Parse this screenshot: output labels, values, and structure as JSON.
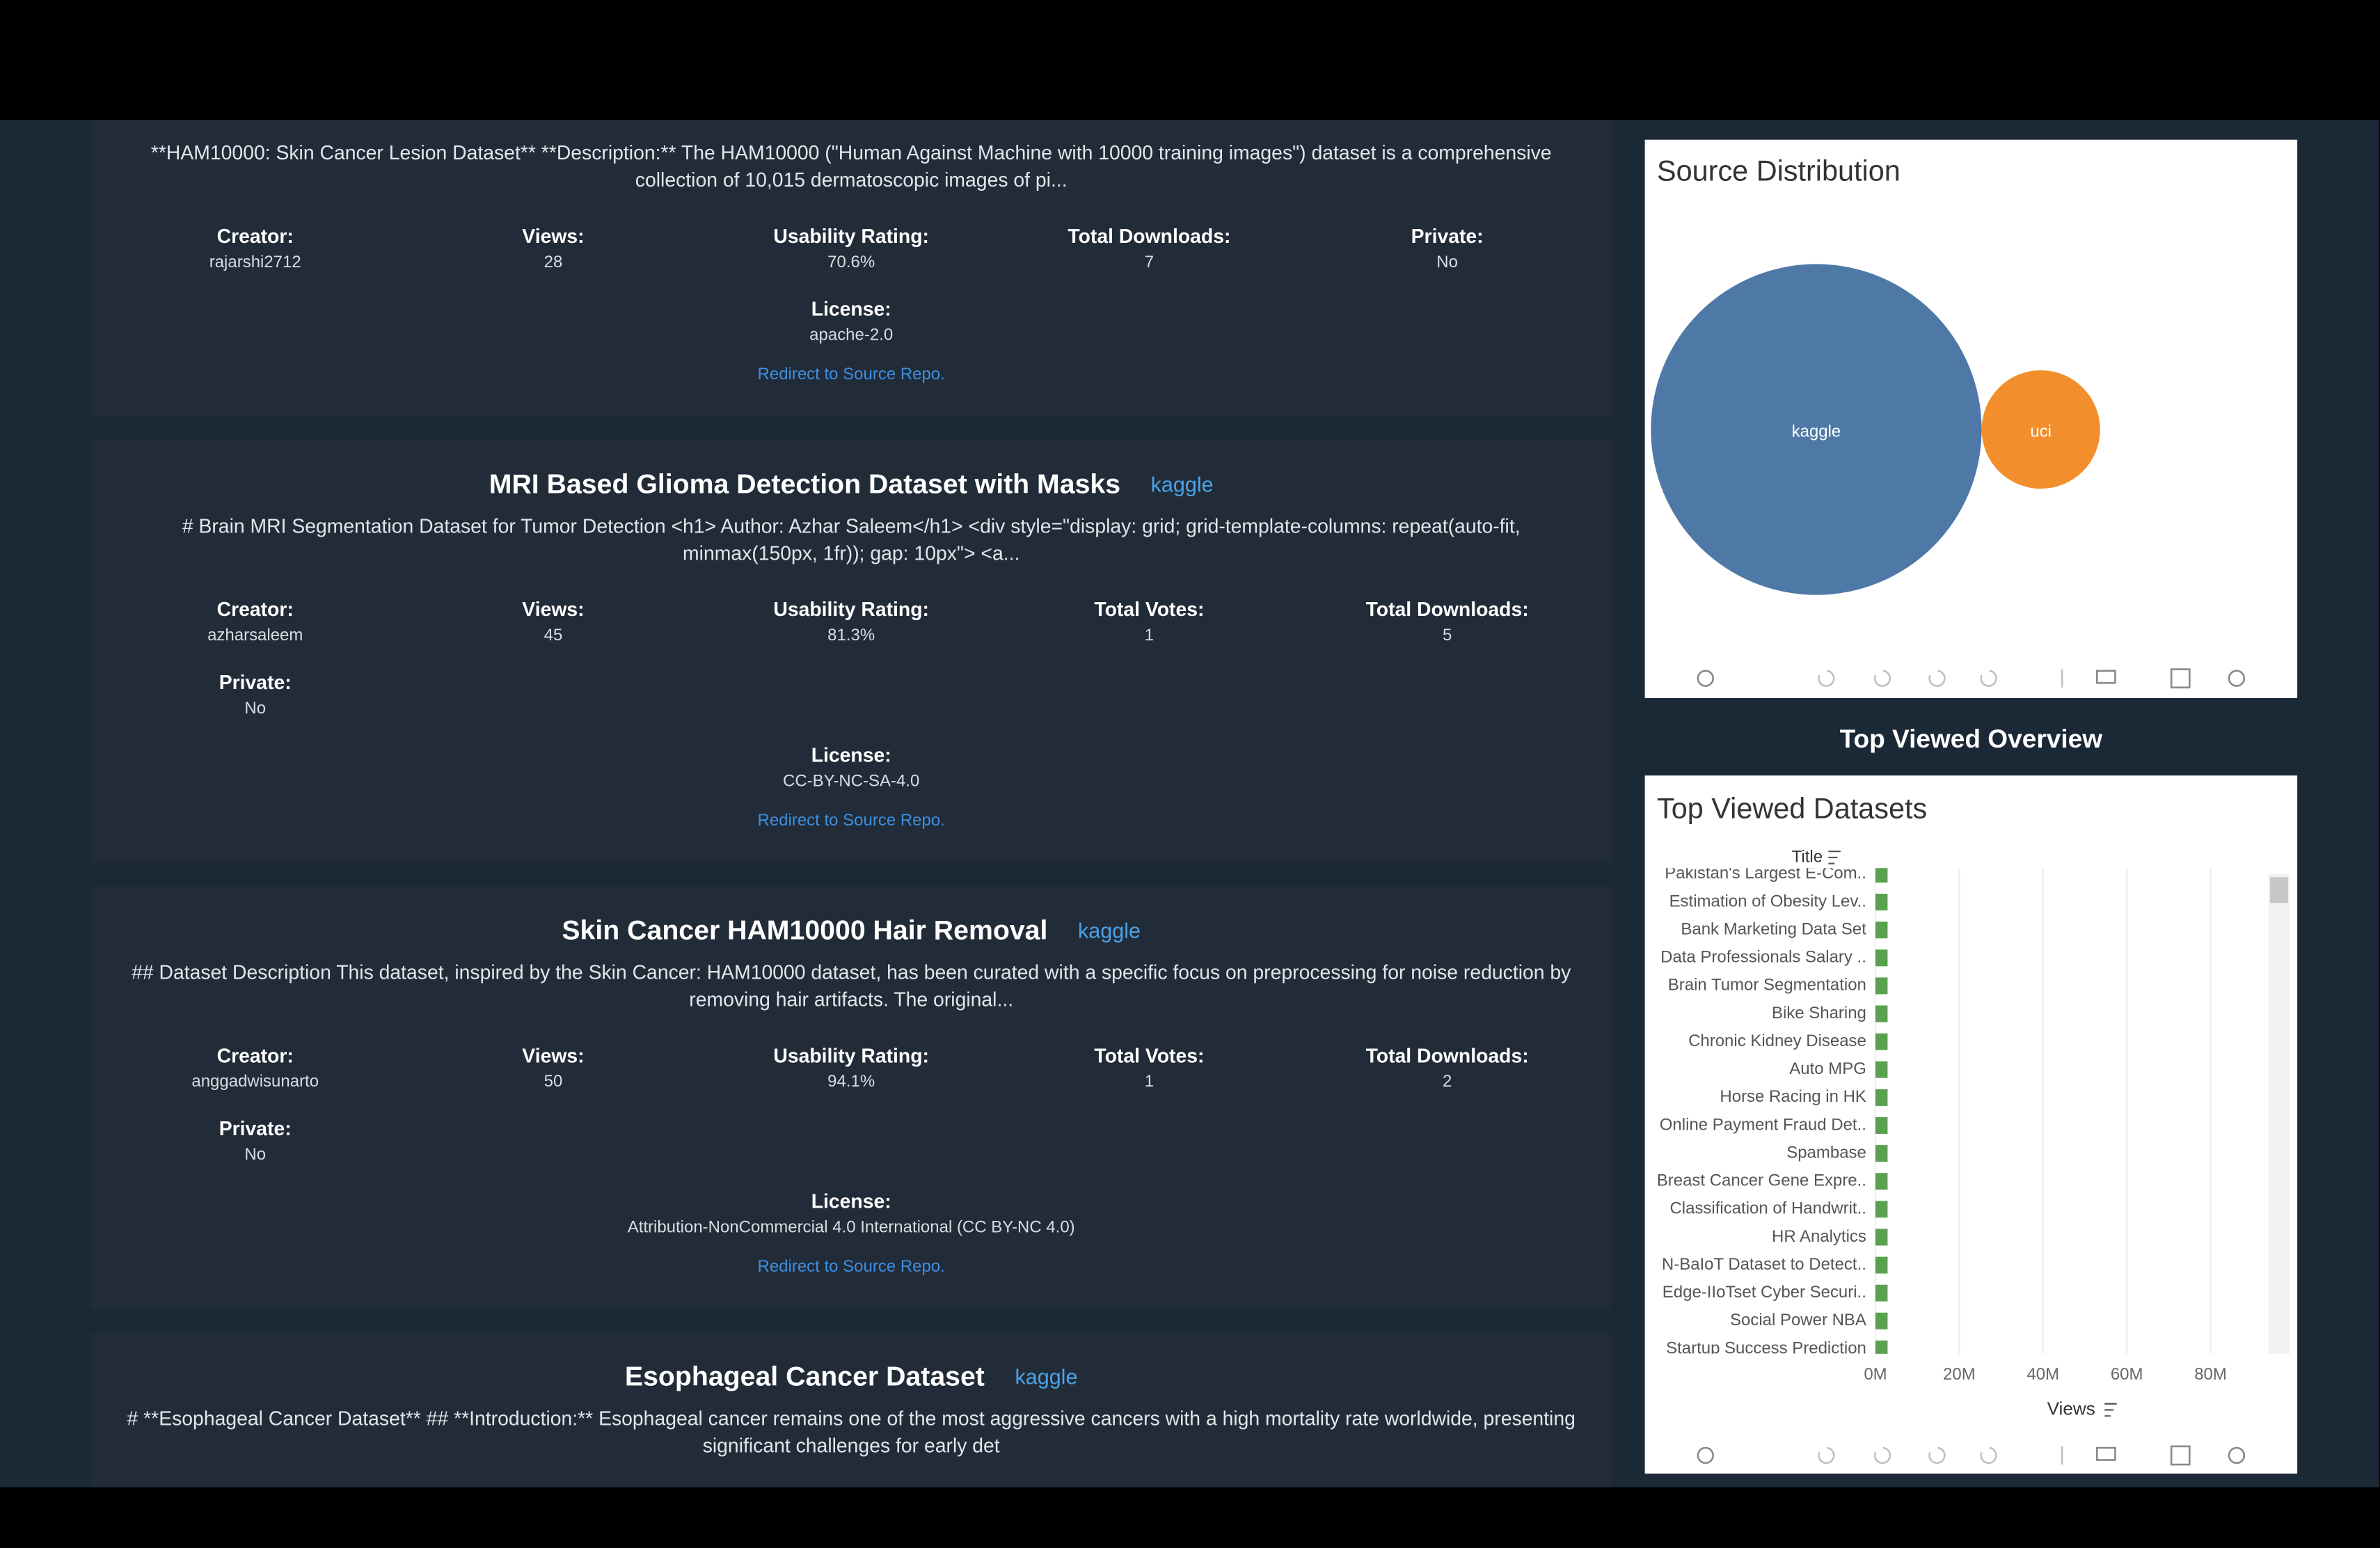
{
  "cards": [
    {
      "description": "**HAM10000: Skin Cancer Lesion Dataset** **Description:** The HAM10000 (\"Human Against Machine with 10000 training images\") dataset is a comprehensive collection of 10,015 dermatoscopic images of pi...",
      "fields": [
        {
          "label": "Creator:",
          "value": "rajarshi2712"
        },
        {
          "label": "Views:",
          "value": "28"
        },
        {
          "label": "Usability Rating:",
          "value": "70.6%"
        },
        {
          "label": "Total Downloads:",
          "value": "7"
        },
        {
          "label": "Private:",
          "value": "No"
        }
      ],
      "license": {
        "label": "License:",
        "value": "apache-2.0"
      },
      "link": "Redirect to Source Repo."
    },
    {
      "title": "MRI Based Glioma Detection Dataset with Masks",
      "source": "kaggle",
      "description": "# Brain MRI Segmentation Dataset for Tumor Detection <h1> Author: Azhar Saleem</h1> <div style=\"display: grid; grid-template-columns: repeat(auto-fit, minmax(150px, 1fr)); gap: 10px\"> <a...",
      "fields": [
        {
          "label": "Creator:",
          "value": "azharsaleem"
        },
        {
          "label": "Views:",
          "value": "45"
        },
        {
          "label": "Usability Rating:",
          "value": "81.3%"
        },
        {
          "label": "Total Votes:",
          "value": "1"
        },
        {
          "label": "Total Downloads:",
          "value": "5"
        },
        {
          "label": "Private:",
          "value": "No"
        }
      ],
      "license": {
        "label": "License:",
        "value": "CC-BY-NC-SA-4.0"
      },
      "link": "Redirect to Source Repo."
    },
    {
      "title": "Skin Cancer HAM10000 Hair Removal",
      "source": "kaggle",
      "description": "## Dataset Description This dataset, inspired by the Skin Cancer: HAM10000 dataset, has been curated with a specific focus on preprocessing for noise reduction by removing hair artifacts. The original...",
      "fields": [
        {
          "label": "Creator:",
          "value": "anggadwisunarto"
        },
        {
          "label": "Views:",
          "value": "50"
        },
        {
          "label": "Usability Rating:",
          "value": "94.1%"
        },
        {
          "label": "Total Votes:",
          "value": "1"
        },
        {
          "label": "Total Downloads:",
          "value": "2"
        },
        {
          "label": "Private:",
          "value": "No"
        }
      ],
      "license": {
        "label": "License:",
        "value": "Attribution-NonCommercial 4.0 International (CC BY-NC 4.0)"
      },
      "link": "Redirect to Source Repo."
    },
    {
      "title": "Esophageal Cancer Dataset",
      "source": "kaggle",
      "description": "# **Esophageal Cancer Dataset** ## **Introduction:** Esophageal cancer remains one of the most aggressive cancers with a high mortality rate worldwide, presenting significant challenges for early det"
    }
  ],
  "side_heading": "Top Viewed Overview",
  "chart_data": [
    {
      "type": "bubble",
      "title": "Source Distribution",
      "categories": [
        "kaggle",
        "uci"
      ],
      "values": [
        78,
        10
      ],
      "colors": [
        "#4e79a7",
        "#f28e2b"
      ]
    },
    {
      "type": "bar",
      "orientation": "horizontal",
      "title": "Top Viewed Datasets",
      "y_label": "Title",
      "x_label": "Views",
      "categories": [
        "Pakistan's Largest E-Com..",
        "Estimation of Obesity Lev..",
        "Bank Marketing Data Set",
        "Data Professionals Salary ..",
        "Brain Tumor Segmentation",
        "Bike Sharing",
        "Chronic Kidney Disease",
        "Auto MPG",
        "Horse Racing in HK",
        "Online Payment Fraud Det..",
        "Spambase",
        "Breast Cancer Gene Expre..",
        "Classification of Handwrit..",
        "HR Analytics",
        "N-BaIoT Dataset to Detect..",
        "Edge-IIoTset Cyber Securi..",
        "Social Power NBA",
        "Startup Success Prediction"
      ],
      "values": [
        2900000,
        2900000,
        2900000,
        2900000,
        2900000,
        2900000,
        2900000,
        2900000,
        2900000,
        2900000,
        2900000,
        2900000,
        2900000,
        2900000,
        2900000,
        2900000,
        2900000,
        2900000
      ],
      "color": "#59a14f",
      "xlim": [
        0,
        92000000
      ],
      "xticks": [
        {
          "value": 0,
          "label": "0M"
        },
        {
          "value": 20000000,
          "label": "20M"
        },
        {
          "value": 40000000,
          "label": "40M"
        },
        {
          "value": 60000000,
          "label": "60M"
        },
        {
          "value": 80000000,
          "label": "80M"
        }
      ],
      "grid": true
    }
  ]
}
